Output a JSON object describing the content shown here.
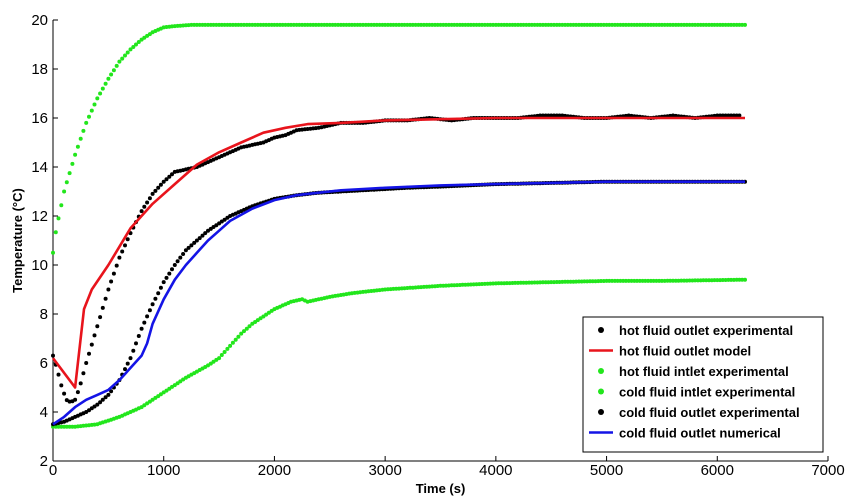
{
  "chart_data": {
    "type": "line",
    "xlabel": "Time (s)",
    "ylabel": "Temperature (°C)",
    "xlim": [
      0,
      7000
    ],
    "ylim": [
      2,
      20
    ],
    "xticks": [
      0,
      1000,
      2000,
      3000,
      4000,
      5000,
      6000,
      7000
    ],
    "yticks": [
      2,
      4,
      6,
      8,
      10,
      12,
      14,
      16,
      18,
      20
    ],
    "grid": false,
    "legend_position": "bottom-right",
    "colors": {
      "black": "#000000",
      "red": "#e8141c",
      "green": "#22e61c",
      "blue": "#1414e6"
    },
    "series": [
      {
        "name": "hot fluid outlet experimental",
        "style": "dots",
        "color": "black",
        "points": [
          [
            0,
            6.3
          ],
          [
            40,
            5.7
          ],
          [
            80,
            5.0
          ],
          [
            120,
            4.5
          ],
          [
            160,
            4.4
          ],
          [
            200,
            4.5
          ],
          [
            240,
            5.0
          ],
          [
            300,
            6.0
          ],
          [
            400,
            7.5
          ],
          [
            500,
            9.0
          ],
          [
            600,
            10.3
          ],
          [
            700,
            11.3
          ],
          [
            800,
            12.2
          ],
          [
            900,
            12.9
          ],
          [
            1000,
            13.4
          ],
          [
            1100,
            13.8
          ],
          [
            1200,
            13.9
          ],
          [
            1300,
            14.0
          ],
          [
            1400,
            14.2
          ],
          [
            1500,
            14.4
          ],
          [
            1600,
            14.6
          ],
          [
            1700,
            14.8
          ],
          [
            1800,
            14.9
          ],
          [
            1900,
            15.0
          ],
          [
            2000,
            15.2
          ],
          [
            2100,
            15.3
          ],
          [
            2200,
            15.5
          ],
          [
            2400,
            15.6
          ],
          [
            2600,
            15.8
          ],
          [
            2800,
            15.8
          ],
          [
            3000,
            15.9
          ],
          [
            3200,
            15.9
          ],
          [
            3400,
            16.0
          ],
          [
            3600,
            15.9
          ],
          [
            3800,
            16.0
          ],
          [
            4000,
            16.0
          ],
          [
            4200,
            16.0
          ],
          [
            4400,
            16.1
          ],
          [
            4600,
            16.1
          ],
          [
            4800,
            16.0
          ],
          [
            5000,
            16.0
          ],
          [
            5200,
            16.1
          ],
          [
            5400,
            16.0
          ],
          [
            5600,
            16.1
          ],
          [
            5800,
            16.0
          ],
          [
            6000,
            16.1
          ],
          [
            6200,
            16.1
          ]
        ]
      },
      {
        "name": "hot fluid outlet model",
        "style": "line",
        "color": "red",
        "points": [
          [
            0,
            6.2
          ],
          [
            200,
            5.0
          ],
          [
            280,
            8.2
          ],
          [
            350,
            9.0
          ],
          [
            500,
            10.0
          ],
          [
            700,
            11.5
          ],
          [
            900,
            12.5
          ],
          [
            1100,
            13.3
          ],
          [
            1300,
            14.1
          ],
          [
            1500,
            14.6
          ],
          [
            1700,
            15.0
          ],
          [
            1900,
            15.4
          ],
          [
            2100,
            15.6
          ],
          [
            2300,
            15.75
          ],
          [
            2600,
            15.8
          ],
          [
            3000,
            15.9
          ],
          [
            3500,
            15.95
          ],
          [
            4000,
            16.0
          ],
          [
            5000,
            16.0
          ],
          [
            6250,
            16.0
          ]
        ]
      },
      {
        "name": "hot fluid intlet experimental",
        "style": "dots",
        "color": "green",
        "points": [
          [
            0,
            10.5
          ],
          [
            30,
            11.5
          ],
          [
            60,
            12.1
          ],
          [
            100,
            13.0
          ],
          [
            200,
            14.5
          ],
          [
            300,
            15.8
          ],
          [
            400,
            16.8
          ],
          [
            500,
            17.6
          ],
          [
            600,
            18.3
          ],
          [
            700,
            18.8
          ],
          [
            800,
            19.2
          ],
          [
            900,
            19.5
          ],
          [
            1000,
            19.7
          ],
          [
            1100,
            19.75
          ],
          [
            1250,
            19.8
          ],
          [
            1500,
            19.8
          ],
          [
            2000,
            19.8
          ],
          [
            3000,
            19.8
          ],
          [
            4000,
            19.8
          ],
          [
            5000,
            19.8
          ],
          [
            6250,
            19.8
          ]
        ]
      },
      {
        "name": "cold fluid intlet experimental",
        "style": "dots",
        "color": "green",
        "points": [
          [
            0,
            3.4
          ],
          [
            200,
            3.4
          ],
          [
            400,
            3.5
          ],
          [
            600,
            3.8
          ],
          [
            800,
            4.2
          ],
          [
            1000,
            4.8
          ],
          [
            1200,
            5.4
          ],
          [
            1400,
            5.9
          ],
          [
            1500,
            6.2
          ],
          [
            1600,
            6.7
          ],
          [
            1700,
            7.2
          ],
          [
            1800,
            7.6
          ],
          [
            2000,
            8.2
          ],
          [
            2150,
            8.5
          ],
          [
            2250,
            8.6
          ],
          [
            2300,
            8.5
          ],
          [
            2500,
            8.7
          ],
          [
            2700,
            8.85
          ],
          [
            3000,
            9.0
          ],
          [
            3500,
            9.15
          ],
          [
            4000,
            9.25
          ],
          [
            4500,
            9.3
          ],
          [
            5000,
            9.35
          ],
          [
            5500,
            9.35
          ],
          [
            6250,
            9.4
          ]
        ]
      },
      {
        "name": "cold fluid outlet experimental",
        "style": "dots",
        "color": "black",
        "points": [
          [
            0,
            3.5
          ],
          [
            100,
            3.6
          ],
          [
            200,
            3.8
          ],
          [
            300,
            4.0
          ],
          [
            400,
            4.3
          ],
          [
            500,
            4.7
          ],
          [
            600,
            5.3
          ],
          [
            700,
            6.2
          ],
          [
            800,
            7.4
          ],
          [
            900,
            8.4
          ],
          [
            1000,
            9.3
          ],
          [
            1100,
            10.0
          ],
          [
            1200,
            10.6
          ],
          [
            1300,
            11.0
          ],
          [
            1400,
            11.4
          ],
          [
            1500,
            11.7
          ],
          [
            1600,
            12.0
          ],
          [
            1800,
            12.4
          ],
          [
            2000,
            12.7
          ],
          [
            2200,
            12.85
          ],
          [
            2400,
            12.95
          ],
          [
            2600,
            13.0
          ],
          [
            2800,
            13.05
          ],
          [
            3000,
            13.1
          ],
          [
            3200,
            13.15
          ],
          [
            3500,
            13.2
          ],
          [
            4000,
            13.3
          ],
          [
            4500,
            13.35
          ],
          [
            5000,
            13.4
          ],
          [
            5500,
            13.4
          ],
          [
            6000,
            13.4
          ],
          [
            6250,
            13.4
          ]
        ]
      },
      {
        "name": "cold fluid outlet numerical",
        "style": "line",
        "color": "blue",
        "points": [
          [
            0,
            3.5
          ],
          [
            100,
            3.8
          ],
          [
            200,
            4.2
          ],
          [
            300,
            4.5
          ],
          [
            400,
            4.7
          ],
          [
            500,
            4.9
          ],
          [
            600,
            5.3
          ],
          [
            700,
            5.8
          ],
          [
            800,
            6.3
          ],
          [
            850,
            6.8
          ],
          [
            900,
            7.6
          ],
          [
            1000,
            8.6
          ],
          [
            1100,
            9.4
          ],
          [
            1200,
            10.0
          ],
          [
            1300,
            10.5
          ],
          [
            1400,
            11.0
          ],
          [
            1500,
            11.4
          ],
          [
            1600,
            11.8
          ],
          [
            1800,
            12.3
          ],
          [
            2000,
            12.65
          ],
          [
            2200,
            12.85
          ],
          [
            2400,
            12.95
          ],
          [
            2600,
            13.05
          ],
          [
            2800,
            13.1
          ],
          [
            3000,
            13.15
          ],
          [
            3500,
            13.25
          ],
          [
            4000,
            13.3
          ],
          [
            4500,
            13.35
          ],
          [
            5000,
            13.4
          ],
          [
            5500,
            13.4
          ],
          [
            6250,
            13.4
          ]
        ]
      }
    ]
  }
}
